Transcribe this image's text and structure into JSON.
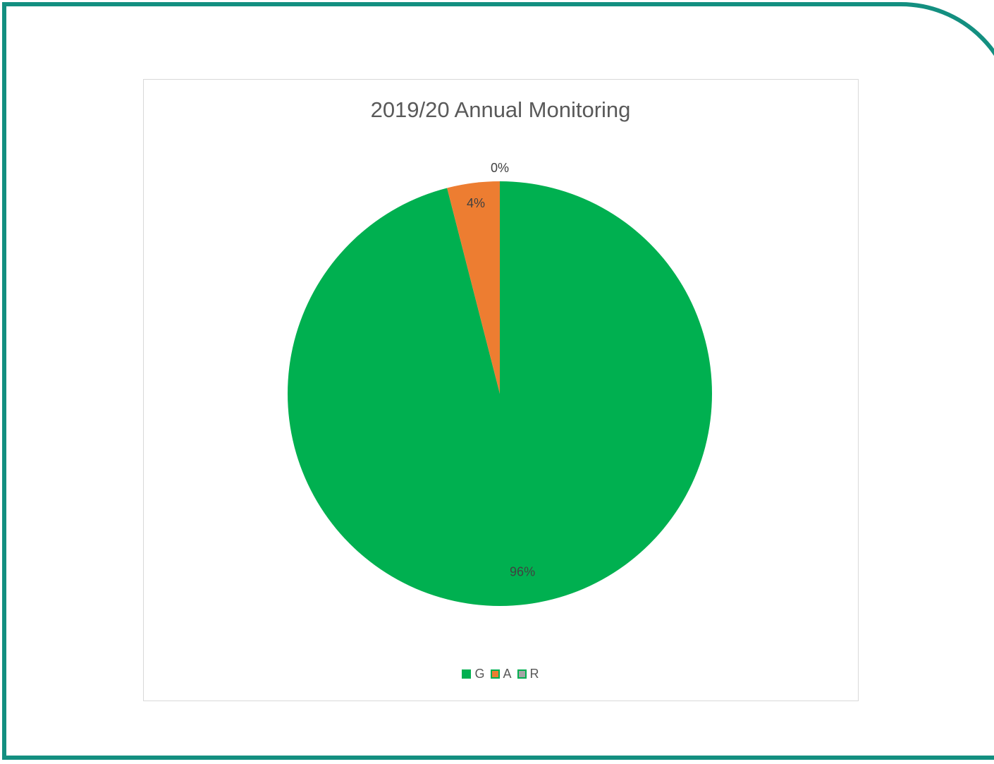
{
  "chart_data": {
    "type": "pie",
    "title": "2019/20 Annual Monitoring",
    "slices": [
      {
        "label": "G",
        "value": 96,
        "percent_label": "96%",
        "color": "#00b050"
      },
      {
        "label": "A",
        "value": 4,
        "percent_label": "4%",
        "color": "#ed7d31"
      },
      {
        "label": "R",
        "value": 0,
        "percent_label": "0%",
        "color": "#a5a5a5"
      }
    ],
    "legend_position": "bottom",
    "legend": [
      "G",
      "A",
      "R"
    ],
    "frame_color": "#138f80"
  }
}
